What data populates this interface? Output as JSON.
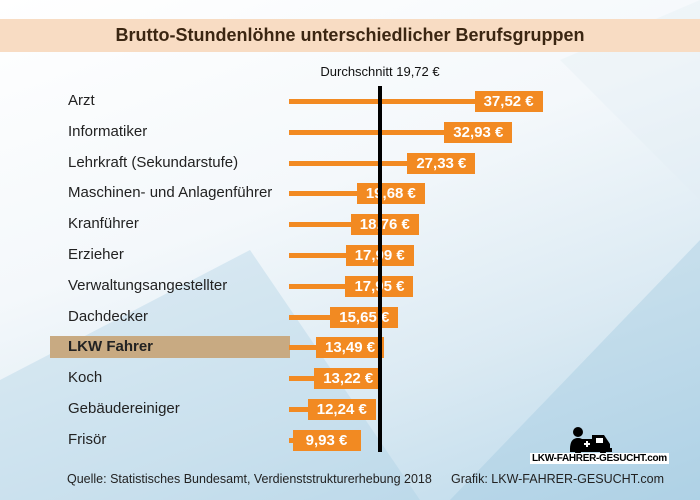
{
  "chart_data": {
    "type": "bar",
    "orientation": "horizontal",
    "title": "Brutto-Stundenlöhne unterschiedlicher Berufsgruppen",
    "categories": [
      "Arzt",
      "Informatiker",
      "Lehrkraft (Sekundarstufe)",
      "Maschinen- und Anlagenführer",
      "Kranführer",
      "Erzieher",
      "Verwaltungsangestellter",
      "Dachdecker",
      "LKW Fahrer",
      "Koch",
      "Gebäudereiniger",
      "Frisör"
    ],
    "values": [
      37.52,
      32.93,
      27.33,
      19.68,
      18.76,
      17.99,
      17.95,
      15.65,
      13.49,
      13.22,
      12.24,
      9.93
    ],
    "value_labels": [
      "37,52 €",
      "32,93 €",
      "27,33 €",
      "19,68 €",
      "18,76 €",
      "17,99 €",
      "17,95 €",
      "15,65 €",
      "13,49 €",
      "13,22 €",
      "12,24 €",
      "9,93 €"
    ],
    "highlighted": "LKW Fahrer",
    "reference_line": {
      "value": 19.72,
      "label": "Durchschnitt 19,72 €"
    },
    "bar_color": "#f28a22",
    "highlight_color": "#c8aa82"
  },
  "footer": {
    "source": "Quelle: Statistisches Bundesamt, Verdienststrukturerhebung 2018",
    "credit": "Grafik: LKW-FAHRER-GESUCHT.com"
  },
  "logo": {
    "text": "LKW-FAHRER-GESUCHT.com"
  }
}
